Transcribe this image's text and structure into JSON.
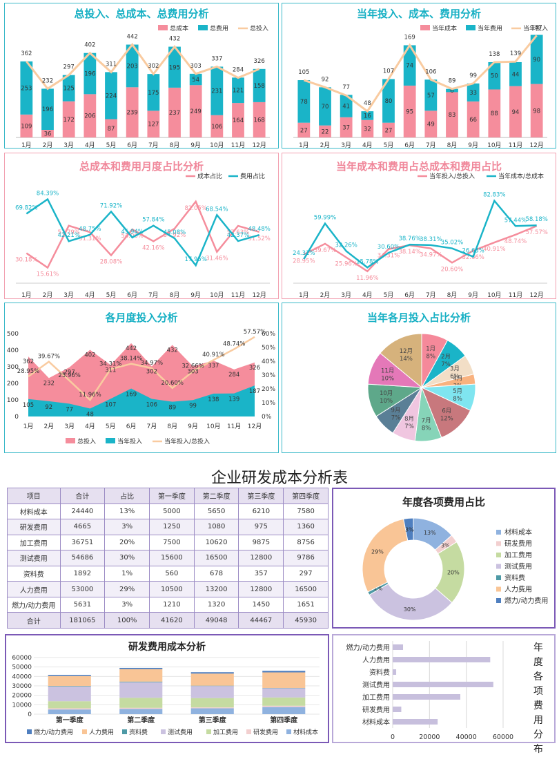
{
  "panels": {
    "p1_title": "总投入、总成本、总费用分析",
    "p2_title": "当年投入、成本、费用分析",
    "p3_title": "总成本和费用月度占比分析",
    "p4_title": "当年成本和费用占总成本和费用占比",
    "p5_title": "各月度投入分析",
    "p6_title": "当年各月投入占比分析"
  },
  "table_title": "企业研发成本分析表",
  "donut_title": "年度各项费用占比",
  "stack_title": "研发费用成本分析",
  "hbar_title": "年度各项费用分布",
  "table": {
    "headers": [
      "项目",
      "合计",
      "占比",
      "第一季度",
      "第二季度",
      "第三季度",
      "第四季度"
    ],
    "rows": [
      [
        "材料成本",
        "24440",
        "13%",
        "5000",
        "5650",
        "6210",
        "7580"
      ],
      [
        "研发费用",
        "4665",
        "3%",
        "1250",
        "1080",
        "975",
        "1360"
      ],
      [
        "加工费用",
        "36751",
        "20%",
        "7500",
        "10620",
        "9875",
        "8756"
      ],
      [
        "测试费用",
        "54686",
        "30%",
        "15600",
        "16500",
        "12800",
        "9786"
      ],
      [
        "资料费",
        "1892",
        "1%",
        "560",
        "678",
        "357",
        "297"
      ],
      [
        "人力费用",
        "53000",
        "29%",
        "10500",
        "13200",
        "12800",
        "16500"
      ],
      [
        "燃力/动力费用",
        "5631",
        "3%",
        "1210",
        "1320",
        "1450",
        "1651"
      ],
      [
        "合计",
        "181065",
        "100%",
        "41620",
        "49048",
        "44467",
        "45930"
      ]
    ]
  },
  "chart_data": [
    {
      "id": "c1",
      "type": "bar",
      "title": "总投入、总成本、总费用分析",
      "categories": [
        "1月",
        "2月",
        "3月",
        "4月",
        "5月",
        "6月",
        "7月",
        "8月",
        "9月",
        "10月",
        "11月",
        "12月"
      ],
      "series": [
        {
          "name": "总成本",
          "values": [
            109,
            36,
            172,
            206,
            87,
            239,
            127,
            237,
            249,
            106,
            164,
            168
          ]
        },
        {
          "name": "总费用",
          "values": [
            253,
            196,
            125,
            196,
            224,
            203,
            175,
            195,
            54,
            231,
            121,
            158
          ]
        },
        {
          "name": "总投入",
          "values": [
            362,
            232,
            297,
            402,
            311,
            442,
            302,
            432,
            303,
            337,
            284,
            326
          ]
        }
      ],
      "ylim": [
        0,
        480
      ]
    },
    {
      "id": "c2",
      "type": "bar",
      "title": "当年投入、成本、费用分析",
      "categories": [
        "1月",
        "2月",
        "3月",
        "4月",
        "5月",
        "6月",
        "7月",
        "8月",
        "9月",
        "10月",
        "11月",
        "12月"
      ],
      "series": [
        {
          "name": "当年成本",
          "values": [
            27,
            22,
            37,
            32,
            27,
            95,
            49,
            83,
            66,
            88,
            94,
            98
          ]
        },
        {
          "name": "当年费用",
          "values": [
            78,
            70,
            41,
            16,
            80,
            74,
            57,
            6,
            33,
            50,
            44,
            90
          ]
        },
        {
          "name": "当年投入",
          "values": [
            105,
            92,
            77,
            48,
            107,
            169,
            106,
            89,
            99,
            138,
            139,
            187
          ]
        }
      ],
      "ylim": [
        0,
        200
      ]
    },
    {
      "id": "c3",
      "type": "line",
      "title": "总成本和费用月度占比分析",
      "categories": [
        "1月",
        "2月",
        "3月",
        "4月",
        "5月",
        "6月",
        "7月",
        "8月",
        "9月",
        "10月",
        "11月",
        "12月"
      ],
      "series": [
        {
          "name": "成本占比",
          "values": [
            30.18,
            15.61,
            57.79,
            51.31,
            28.08,
            54.06,
            42.16,
            54.92,
            82.05,
            31.46,
            57.63,
            51.52
          ],
          "labels": [
            "30.18%",
            "15.61%",
            "57.79%",
            "51.31%",
            "28.08%",
            "54.06%",
            "42.16%",
            "54.92%",
            "82.05%",
            "31.46%",
            "57.63%",
            "51.52%"
          ]
        },
        {
          "name": "费用占比",
          "values": [
            69.82,
            84.39,
            42.21,
            48.75,
            71.92,
            45.94,
            57.84,
            45.08,
            17.95,
            68.54,
            42.37,
            48.48
          ],
          "labels": [
            "69.82%",
            "84.39%",
            "42.21%",
            "48.75%",
            "71.92%",
            "45.94%",
            "57.84%",
            "45.08%",
            "17.95%",
            "68.54%",
            "42.37%",
            "48.48%"
          ]
        }
      ],
      "ylim": [
        0,
        100
      ]
    },
    {
      "id": "c4",
      "type": "line",
      "title": "当年成本和费用占总成本和费用占比",
      "categories": [
        "1月",
        "2月",
        "3月",
        "4月",
        "5月",
        "6月",
        "7月",
        "8月",
        "9月",
        "10月",
        "11月",
        "12月"
      ],
      "series": [
        {
          "name": "当年投入/总投入",
          "values": [
            28.95,
            39.67,
            25.96,
            11.96,
            34.31,
            38.14,
            34.97,
            20.6,
            32.66,
            40.91,
            48.74,
            57.57
          ],
          "labels": [
            "28.95%",
            "39.67%",
            "25.96%",
            "11.96%",
            "34.31%",
            "38.14%",
            "34.97%",
            "20.60%",
            "32.66%",
            "40.91%",
            "48.74%",
            "57.57%"
          ]
        },
        {
          "name": "当年成本/总成本",
          "values": [
            24.31,
            59.99,
            32.26,
            15.78,
            30.6,
            38.76,
            38.31,
            35.02,
            26.63,
            82.83,
            57.44,
            58.18
          ],
          "labels": [
            "24.31%",
            "59.99%",
            "32.26%",
            "15.78%",
            "30.60%",
            "38.76%",
            "38.31%",
            "35.02%",
            "26.63%",
            "82.83%",
            "57.44%",
            "58.18%"
          ]
        }
      ],
      "ylim": [
        0,
        100
      ]
    },
    {
      "id": "c5",
      "type": "area",
      "title": "各月度投入分析",
      "categories": [
        "1月",
        "2月",
        "3月",
        "4月",
        "5月",
        "6月",
        "7月",
        "8月",
        "9月",
        "10月",
        "11月",
        "12月"
      ],
      "series": [
        {
          "name": "总投入",
          "values": [
            362,
            232,
            297,
            402,
            311,
            442,
            302,
            432,
            303,
            337,
            284,
            326
          ]
        },
        {
          "name": "当年投入",
          "values": [
            105,
            92,
            77,
            48,
            107,
            169,
            106,
            89,
            99,
            138,
            139,
            187
          ]
        },
        {
          "name": "当年投入/总投入",
          "values": [
            28.95,
            39.67,
            25.96,
            11.96,
            34.31,
            38.14,
            34.97,
            20.6,
            32.66,
            40.91,
            48.74,
            57.57
          ],
          "labels": [
            "28.95%",
            "39.67%",
            "25.96%",
            "11.96%",
            "34.31%",
            "38.14%",
            "34.97%",
            "20.60%",
            "32.66%",
            "40.91%",
            "48.74%",
            "57.57%"
          ]
        }
      ],
      "ylim": [
        0,
        500
      ],
      "y2lim": [
        0,
        60
      ],
      "yticks": [
        "0",
        "100",
        "200",
        "300",
        "400",
        "500"
      ],
      "y2ticks": [
        "0%",
        "10%",
        "20%",
        "30%",
        "40%",
        "50%",
        "60%"
      ]
    },
    {
      "id": "c6",
      "type": "pie",
      "title": "当年各月投入占比分析",
      "categories": [
        "1月",
        "2月",
        "3月",
        "4月",
        "5月",
        "6月",
        "7月",
        "8月",
        "9月",
        "10月",
        "11月",
        "12月"
      ],
      "values": [
        8,
        7,
        6,
        3,
        8,
        12,
        8,
        7,
        7,
        10,
        10,
        14
      ],
      "labels": [
        "8%",
        "7%",
        "6%",
        "3%",
        "8%",
        "12%",
        "8%",
        "7%",
        "7%",
        "10%",
        "10%",
        "14%"
      ]
    },
    {
      "id": "c7",
      "type": "pie",
      "title": "年度各项费用占比",
      "categories": [
        "材料成本",
        "研发费用",
        "加工费用",
        "测试费用",
        "资料费",
        "人力费用",
        "燃力/动力费用"
      ],
      "values": [
        24440,
        4665,
        36751,
        54686,
        1892,
        53000,
        5631
      ],
      "labels": [
        "13%",
        "3%",
        "20%",
        "30%",
        "1%",
        "29%",
        "3%"
      ]
    },
    {
      "id": "c8",
      "type": "bar",
      "title": "研发费用成本分析",
      "categories": [
        "第一季度",
        "第二季度",
        "第三季度",
        "第四季度"
      ],
      "series": [
        {
          "name": "材料成本",
          "values": [
            5000,
            5650,
            6210,
            7580
          ]
        },
        {
          "name": "研发费用",
          "values": [
            1250,
            1080,
            975,
            1360
          ]
        },
        {
          "name": "加工费用",
          "values": [
            7500,
            10620,
            9875,
            8756
          ]
        },
        {
          "name": "测试费用",
          "values": [
            15600,
            16500,
            12800,
            9786
          ]
        },
        {
          "name": "资料费",
          "values": [
            560,
            678,
            357,
            297
          ]
        },
        {
          "name": "人力费用",
          "values": [
            10500,
            13200,
            12800,
            16500
          ]
        },
        {
          "name": "燃力/动力费用",
          "values": [
            1210,
            1320,
            1450,
            1651
          ]
        }
      ],
      "ylim": [
        0,
        60000
      ],
      "yticks": [
        "0",
        "10000",
        "20000",
        "30000",
        "40000",
        "50000",
        "60000"
      ]
    },
    {
      "id": "c9",
      "type": "bar",
      "title": "年度各项费用分布",
      "categories": [
        "材料成本",
        "研发费用",
        "加工费用",
        "测试费用",
        "资料费",
        "人力费用",
        "燃力/动力费用"
      ],
      "values": [
        24440,
        4665,
        36751,
        54686,
        1892,
        53000,
        5631
      ],
      "xlim": [
        0,
        60000
      ],
      "xticks": [
        "0",
        "20000",
        "40000",
        "60000"
      ]
    }
  ],
  "colors": {
    "pink": "#f58d9c",
    "teal": "#1ab4c8",
    "peach": "#f9cba0",
    "lavender": "#c7bfdd",
    "pie": [
      "#f5899a",
      "#1ab4c8",
      "#f2dec6",
      "#f9b27f",
      "#7fe5f0",
      "#c8787d",
      "#86d4b8",
      "#f0c6e0",
      "#5a7f96",
      "#5ea88a",
      "#e478b8",
      "#d6b27c"
    ],
    "donut": [
      "#8fb2df",
      "#f2cfcf",
      "#c5dba1",
      "#cbc2e0",
      "#4e9aa6",
      "#f9c596",
      "#4f7fbf"
    ],
    "stack": [
      "#8fb2df",
      "#f2cfcf",
      "#c5dba1",
      "#cbc2e0",
      "#4e9aa6",
      "#f9c596",
      "#4f7fbf"
    ]
  }
}
